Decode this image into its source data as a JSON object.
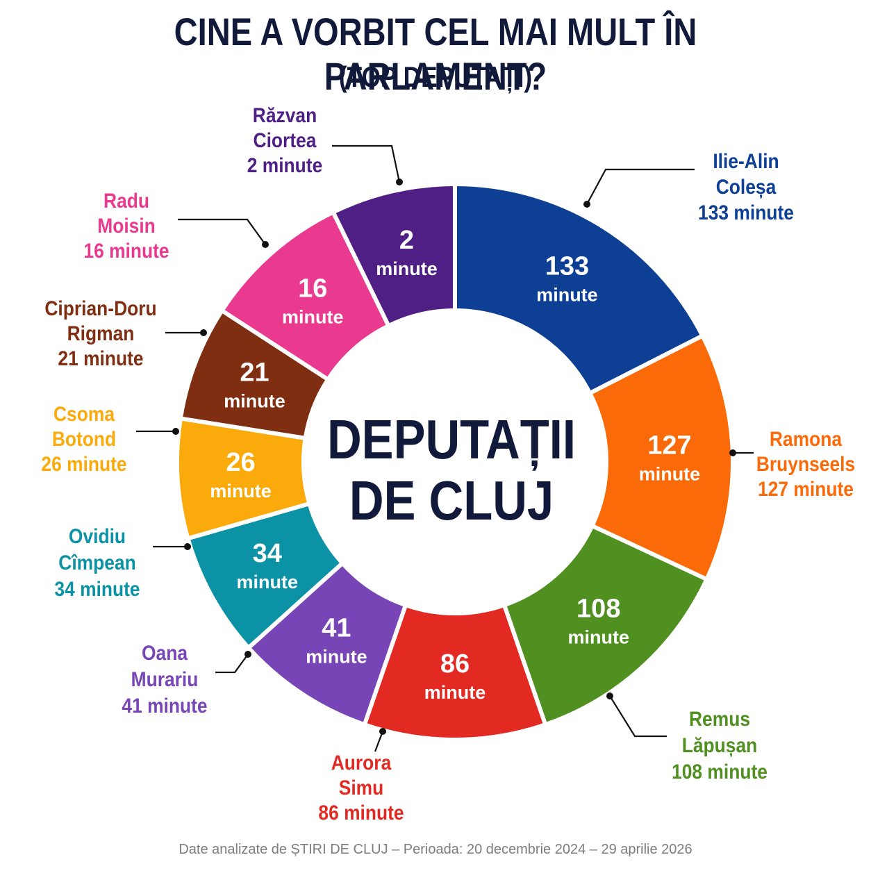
{
  "title": "CINE A VORBIT CEL MAI MULT ÎN PARLAMENT?",
  "subtitle": "(TOP DEPUTAȚI)",
  "center_label": [
    "DEPUTAȚII",
    "DE CLUJ"
  ],
  "footnote": "Date analizate de ȘTIRI DE CLUJ – Perioada: 20 decembrie 2024 – 29 aprilie 2026",
  "unit_label": "minute",
  "chart_data": {
    "type": "pie",
    "variant": "donut",
    "legend": "outside labels",
    "slices": [
      {
        "name": "Ilie-Alin Coleșa",
        "label_lines": [
          "Ilie-Alin",
          "Coleșa",
          "133 minute"
        ],
        "value": 133,
        "color": "#0d3f94"
      },
      {
        "name": "Ramona Bruynseels",
        "label_lines": [
          "Ramona",
          "Bruynseels",
          "127 minute"
        ],
        "value": 127,
        "color": "#fb6a08"
      },
      {
        "name": "Remus Lăpușan",
        "label_lines": [
          "Remus",
          "Lăpușan",
          "108 minute"
        ],
        "value": 108,
        "color": "#4f9020"
      },
      {
        "name": "Aurora Simu",
        "label_lines": [
          "Aurora",
          "Simu",
          "86 minute"
        ],
        "value": 86,
        "color": "#e22a23"
      },
      {
        "name": "Oana Murariu",
        "label_lines": [
          "Oana",
          "Murariu",
          "41 minute"
        ],
        "value": 41,
        "color": "#7845b6"
      },
      {
        "name": "Ovidiu Cîmpean",
        "label_lines": [
          "Ovidiu",
          "Cîmpean",
          "34 minute"
        ],
        "value": 34,
        "color": "#0c92a5"
      },
      {
        "name": "Csoma Botond",
        "label_lines": [
          "Csoma",
          "Botond",
          "26 minute"
        ],
        "value": 26,
        "color": "#fbaa0c"
      },
      {
        "name": "Ciprian-Doru Rigman",
        "label_lines": [
          "Ciprian-Doru",
          "Rigman",
          "21 minute"
        ],
        "value": 21,
        "color": "#7f2e12"
      },
      {
        "name": "Radu Moisin",
        "label_lines": [
          "Radu",
          "Moisin",
          "16 minute"
        ],
        "value": 16,
        "color": "#ea3a8f"
      },
      {
        "name": "Răzvan Ciortea",
        "label_lines": [
          "Răzvan",
          "Ciortea",
          "2 minute"
        ],
        "value": 2,
        "color": "#4f1f86"
      }
    ]
  }
}
